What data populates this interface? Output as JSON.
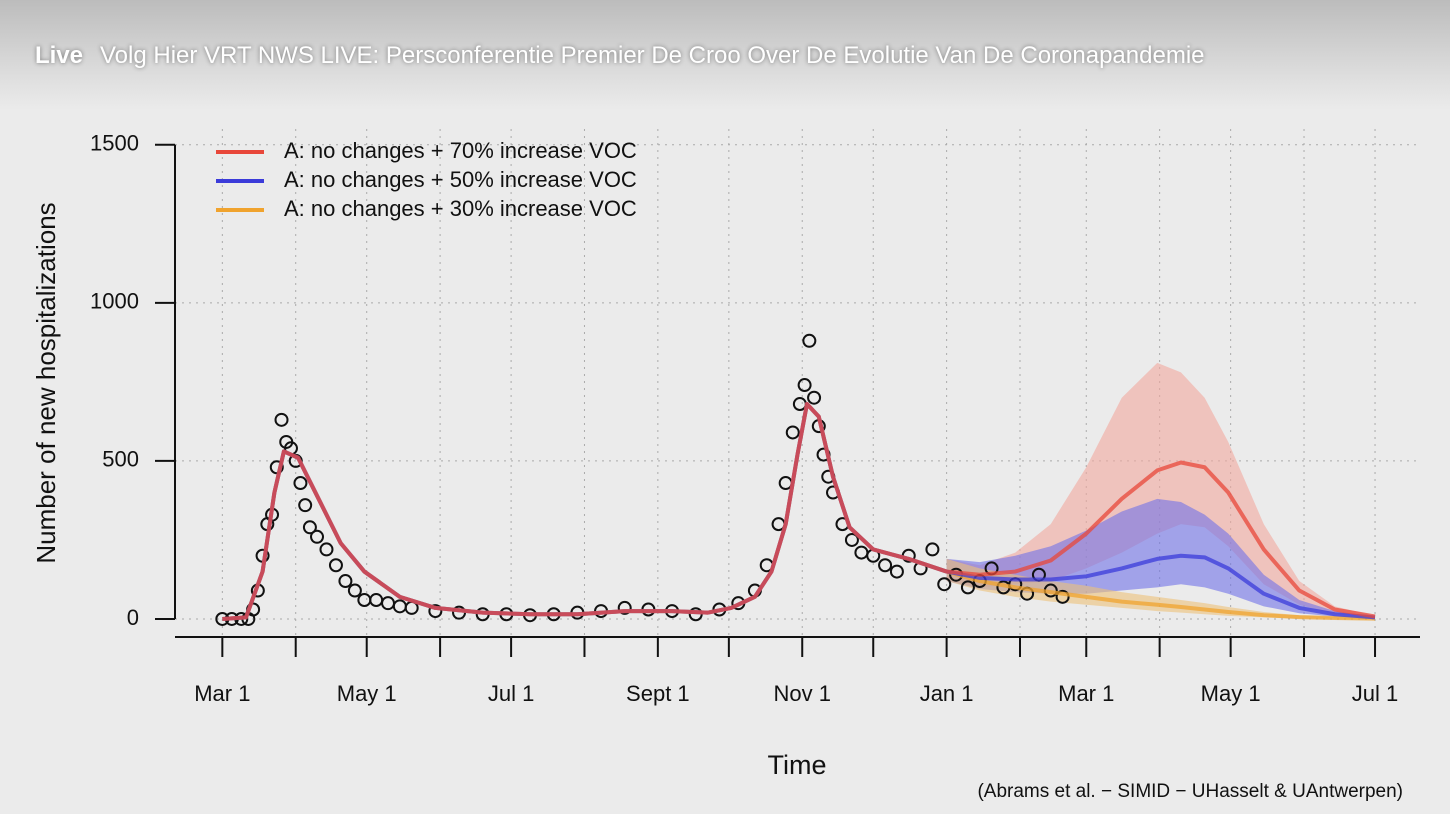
{
  "header": {
    "badge": "Live",
    "title": "Volg Hier VRT NWS LIVE: Persconferentie Premier De Croo Over De Evolutie Van De Coronapandemie"
  },
  "chart_data": {
    "type": "line",
    "xlabel": "Time",
    "ylabel": "Number of new hospitalizations",
    "annotation": "(Abrams et al. − SIMID − UHasselt & UAntwerpen)",
    "xlim": [
      -20,
      506
    ],
    "ylim": [
      -57,
      1550
    ],
    "xticks": [
      {
        "value": 0,
        "label": "Mar 1"
      },
      {
        "value": 31,
        "label": null
      },
      {
        "value": 61,
        "label": "May 1"
      },
      {
        "value": 92,
        "label": null
      },
      {
        "value": 122,
        "label": "Jul 1"
      },
      {
        "value": 153,
        "label": null
      },
      {
        "value": 184,
        "label": "Sept 1"
      },
      {
        "value": 214,
        "label": null
      },
      {
        "value": 245,
        "label": "Nov 1"
      },
      {
        "value": 275,
        "label": null
      },
      {
        "value": 306,
        "label": "Jan 1"
      },
      {
        "value": 337,
        "label": null
      },
      {
        "value": 365,
        "label": "Mar 1"
      },
      {
        "value": 396,
        "label": null
      },
      {
        "value": 426,
        "label": "May 1"
      },
      {
        "value": 457,
        "label": null
      },
      {
        "value": 487,
        "label": "Jul 1"
      }
    ],
    "yticks": [
      0,
      500,
      1000,
      1500
    ],
    "grid": true,
    "legend": "top-left",
    "x": [
      0,
      10,
      17,
      22,
      26,
      32,
      40,
      50,
      60,
      75,
      90,
      110,
      130,
      150,
      170,
      190,
      205,
      215,
      225,
      232,
      238,
      243,
      247,
      252,
      258,
      265,
      275,
      290,
      306,
      320,
      335,
      350,
      365,
      380,
      395,
      405,
      415,
      425,
      440,
      455,
      470,
      487
    ],
    "series": [
      {
        "name": "A: no changes + 70% increase VOC",
        "color": "#e8473a",
        "band_color": "#f2a99e",
        "values": [
          0,
          5,
          150,
          400,
          530,
          510,
          390,
          240,
          150,
          70,
          35,
          20,
          15,
          15,
          25,
          25,
          20,
          35,
          70,
          150,
          300,
          520,
          680,
          640,
          450,
          290,
          220,
          190,
          150,
          140,
          150,
          185,
          270,
          380,
          470,
          495,
          480,
          400,
          220,
          90,
          30,
          8
        ],
        "upper": [
          null,
          null,
          null,
          null,
          null,
          null,
          null,
          null,
          null,
          null,
          null,
          null,
          null,
          null,
          null,
          null,
          null,
          null,
          null,
          null,
          null,
          null,
          null,
          null,
          null,
          null,
          null,
          null,
          190,
          170,
          210,
          300,
          480,
          700,
          810,
          780,
          700,
          560,
          300,
          120,
          40,
          10
        ],
        "lower": [
          null,
          null,
          null,
          null,
          null,
          null,
          null,
          null,
          null,
          null,
          null,
          null,
          null,
          null,
          null,
          null,
          null,
          null,
          null,
          null,
          null,
          null,
          null,
          null,
          null,
          null,
          null,
          null,
          120,
          100,
          110,
          120,
          160,
          210,
          270,
          300,
          290,
          230,
          110,
          45,
          15,
          4
        ]
      },
      {
        "name": "A: no changes + 50% increase VOC",
        "color": "#3b3bd9",
        "band_color": "#6f72e8",
        "values": [
          0,
          5,
          150,
          400,
          530,
          510,
          390,
          240,
          150,
          70,
          35,
          20,
          15,
          15,
          25,
          25,
          20,
          35,
          70,
          150,
          300,
          520,
          680,
          640,
          450,
          290,
          220,
          190,
          150,
          130,
          125,
          125,
          135,
          160,
          190,
          200,
          195,
          160,
          80,
          35,
          15,
          5
        ],
        "upper": [
          null,
          null,
          null,
          null,
          null,
          null,
          null,
          null,
          null,
          null,
          null,
          null,
          null,
          null,
          null,
          null,
          null,
          null,
          null,
          null,
          null,
          null,
          null,
          null,
          null,
          null,
          null,
          null,
          190,
          180,
          200,
          230,
          280,
          340,
          380,
          370,
          330,
          270,
          140,
          60,
          25,
          7
        ],
        "lower": [
          null,
          null,
          null,
          null,
          null,
          null,
          null,
          null,
          null,
          null,
          null,
          null,
          null,
          null,
          null,
          null,
          null,
          null,
          null,
          null,
          null,
          null,
          null,
          null,
          null,
          null,
          null,
          null,
          120,
          95,
          85,
          80,
          80,
          90,
          100,
          110,
          100,
          80,
          40,
          18,
          8,
          3
        ]
      },
      {
        "name": "A: no changes + 30% increase VOC",
        "color": "#f0a32e",
        "band_color": "#edc27a",
        "values": [
          0,
          5,
          150,
          400,
          530,
          510,
          390,
          240,
          150,
          70,
          35,
          20,
          15,
          15,
          25,
          25,
          20,
          35,
          70,
          150,
          300,
          520,
          680,
          640,
          450,
          290,
          220,
          190,
          150,
          120,
          100,
          85,
          70,
          55,
          45,
          38,
          30,
          22,
          12,
          6,
          3,
          1
        ],
        "upper": [
          null,
          null,
          null,
          null,
          null,
          null,
          null,
          null,
          null,
          null,
          null,
          null,
          null,
          null,
          null,
          null,
          null,
          null,
          null,
          null,
          null,
          null,
          null,
          null,
          null,
          null,
          null,
          null,
          190,
          160,
          140,
          120,
          105,
          85,
          70,
          60,
          50,
          38,
          22,
          12,
          6,
          2
        ],
        "lower": [
          null,
          null,
          null,
          null,
          null,
          null,
          null,
          null,
          null,
          null,
          null,
          null,
          null,
          null,
          null,
          null,
          null,
          null,
          null,
          null,
          null,
          null,
          null,
          null,
          null,
          null,
          null,
          null,
          120,
          90,
          70,
          55,
          45,
          35,
          25,
          20,
          15,
          10,
          5,
          2,
          1,
          0
        ]
      }
    ],
    "observations": {
      "color": "#111111",
      "x": [
        0,
        4,
        8,
        11,
        13,
        15,
        17,
        19,
        21,
        23,
        25,
        27,
        29,
        31,
        33,
        35,
        37,
        40,
        44,
        48,
        52,
        56,
        60,
        65,
        70,
        75,
        80,
        90,
        100,
        110,
        120,
        130,
        140,
        150,
        160,
        170,
        180,
        190,
        200,
        210,
        218,
        225,
        230,
        235,
        238,
        241,
        244,
        246,
        248,
        250,
        252,
        254,
        256,
        258,
        262,
        266,
        270,
        275,
        280,
        285,
        290,
        295,
        300,
        305,
        310,
        315,
        320,
        325,
        330,
        335,
        340,
        345,
        350,
        355
      ],
      "values": [
        0,
        0,
        0,
        0,
        30,
        90,
        200,
        300,
        330,
        480,
        630,
        560,
        540,
        500,
        430,
        360,
        290,
        260,
        220,
        170,
        120,
        90,
        60,
        60,
        50,
        40,
        35,
        25,
        20,
        15,
        15,
        12,
        15,
        20,
        25,
        35,
        30,
        25,
        15,
        30,
        50,
        90,
        170,
        300,
        430,
        590,
        680,
        740,
        880,
        700,
        610,
        520,
        450,
        400,
        300,
        250,
        210,
        200,
        170,
        150,
        200,
        160,
        220,
        110,
        140,
        100,
        120,
        160,
        100,
        110,
        80,
        140,
        90,
        70
      ]
    }
  }
}
